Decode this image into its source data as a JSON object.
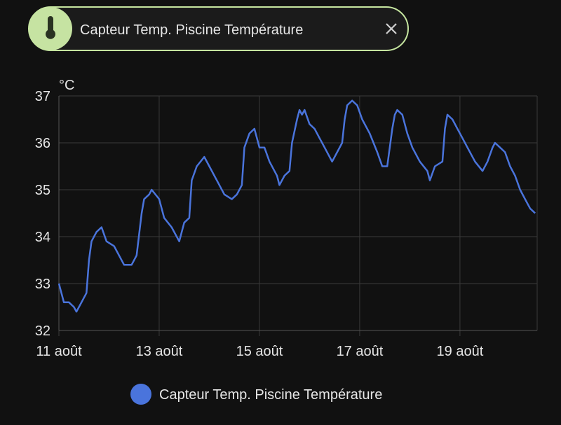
{
  "chip": {
    "label": "Capteur Temp. Piscine Température"
  },
  "chart_data": {
    "type": "line",
    "y_label": "°C",
    "x": [
      11.0,
      11.1,
      11.2,
      11.3,
      11.35,
      11.45,
      11.55,
      11.6,
      11.65,
      11.75,
      11.85,
      11.95,
      12.1,
      12.2,
      12.3,
      12.45,
      12.55,
      12.65,
      12.7,
      12.8,
      12.85,
      13.0,
      13.1,
      13.25,
      13.4,
      13.5,
      13.6,
      13.65,
      13.75,
      13.9,
      14.0,
      14.15,
      14.3,
      14.45,
      14.55,
      14.65,
      14.7,
      14.8,
      14.9,
      15.0,
      15.1,
      15.2,
      15.35,
      15.4,
      15.5,
      15.6,
      15.65,
      15.75,
      15.8,
      15.85,
      15.9,
      16.0,
      16.1,
      16.2,
      16.3,
      16.45,
      16.55,
      16.65,
      16.7,
      16.75,
      16.85,
      16.95,
      17.05,
      17.2,
      17.35,
      17.45,
      17.55,
      17.65,
      17.7,
      17.75,
      17.85,
      17.95,
      18.05,
      18.2,
      18.35,
      18.4,
      18.5,
      18.65,
      18.7,
      18.75,
      18.85,
      18.95,
      19.05,
      19.15,
      19.3,
      19.45,
      19.55,
      19.65,
      19.7,
      19.8,
      19.9,
      20.0,
      20.1,
      20.2,
      20.3,
      20.4,
      20.5
    ],
    "series": [
      {
        "name": "Capteur Temp. Piscine Température",
        "color": "#4a74dc",
        "values": [
          33.0,
          32.6,
          32.6,
          32.5,
          32.4,
          32.6,
          32.8,
          33.5,
          33.9,
          34.1,
          34.2,
          33.9,
          33.8,
          33.6,
          33.4,
          33.4,
          33.6,
          34.5,
          34.8,
          34.9,
          35.0,
          34.8,
          34.4,
          34.2,
          33.9,
          34.3,
          34.4,
          35.2,
          35.5,
          35.7,
          35.5,
          35.2,
          34.9,
          34.8,
          34.9,
          35.1,
          35.9,
          36.2,
          36.3,
          35.9,
          35.9,
          35.6,
          35.3,
          35.1,
          35.3,
          35.4,
          36.0,
          36.5,
          36.7,
          36.6,
          36.7,
          36.4,
          36.3,
          36.1,
          35.9,
          35.6,
          35.8,
          36.0,
          36.5,
          36.8,
          36.9,
          36.8,
          36.5,
          36.2,
          35.8,
          35.5,
          35.5,
          36.3,
          36.6,
          36.7,
          36.6,
          36.2,
          35.9,
          35.6,
          35.4,
          35.2,
          35.5,
          35.6,
          36.3,
          36.6,
          36.5,
          36.3,
          36.1,
          35.9,
          35.6,
          35.4,
          35.6,
          35.9,
          36.0,
          35.9,
          35.8,
          35.5,
          35.3,
          35.0,
          34.8,
          34.6,
          34.5
        ]
      }
    ],
    "xlim": [
      11,
      20.54
    ],
    "ylim": [
      32,
      37
    ],
    "xticks": [
      {
        "value": 11,
        "label": "11 août"
      },
      {
        "value": 13,
        "label": "13 août"
      },
      {
        "value": 15,
        "label": "15 août"
      },
      {
        "value": 17,
        "label": "17 août"
      },
      {
        "value": 19,
        "label": "19 août"
      }
    ],
    "yticks": [
      32,
      33,
      34,
      35,
      36,
      37
    ],
    "grid": true
  }
}
